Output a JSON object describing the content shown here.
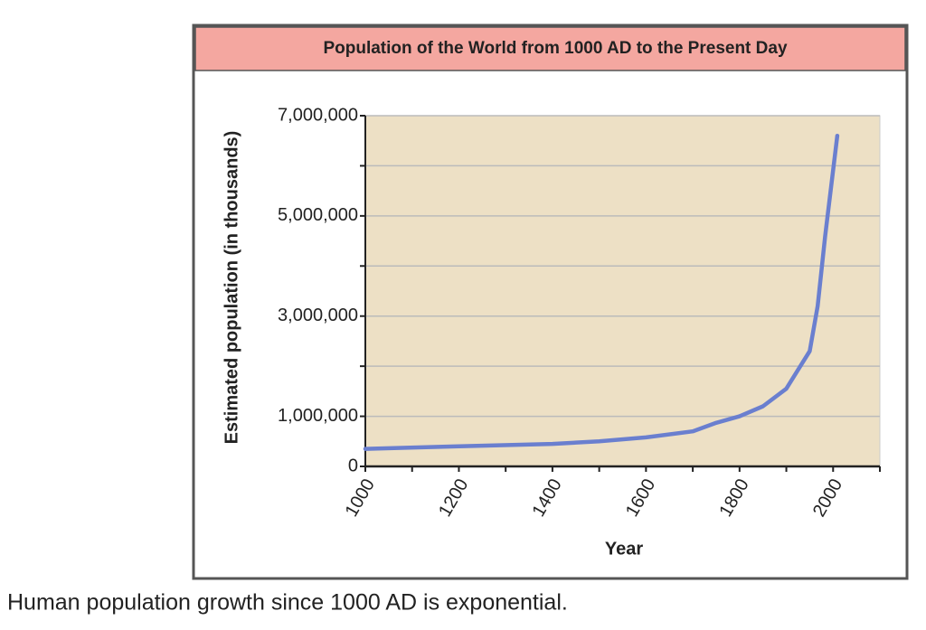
{
  "chart_data": {
    "type": "line",
    "title": "Population of the World from 1000 AD to the Present Day",
    "x_label": "Year",
    "y_label": "Estimated population (in thousands)",
    "x": [
      1000,
      1200,
      1400,
      1500,
      1600,
      1700,
      1750,
      1800,
      1850,
      1900,
      1950,
      1967,
      1983,
      2009
    ],
    "series": [
      {
        "name": "World population",
        "color": "#6a7fcf",
        "values": [
          350000,
          400000,
          450000,
          500000,
          580000,
          700000,
          870000,
          1000000,
          1200000,
          1550000,
          2300000,
          3200000,
          4600000,
          6600000
        ]
      }
    ],
    "xlim": [
      1000,
      2100
    ],
    "xticks": [
      1000,
      1200,
      1400,
      1600,
      1800,
      2000
    ],
    "minor_xticks": [
      1100,
      1300,
      1500,
      1700,
      1900,
      2100
    ],
    "ylim": [
      0,
      7000000
    ],
    "yticks": [
      0,
      {
        "value": 1000000,
        "label": "1,000,000"
      },
      {
        "value": 3000000,
        "label": "3,000,000"
      },
      {
        "value": 5000000,
        "label": "5,000,000"
      },
      {
        "value": 7000000,
        "label": "7,000,000"
      }
    ],
    "minor_yticks": [
      2000000,
      4000000,
      6000000
    ],
    "grid": true
  },
  "caption": "Human population growth since 1000 AD is exponential."
}
